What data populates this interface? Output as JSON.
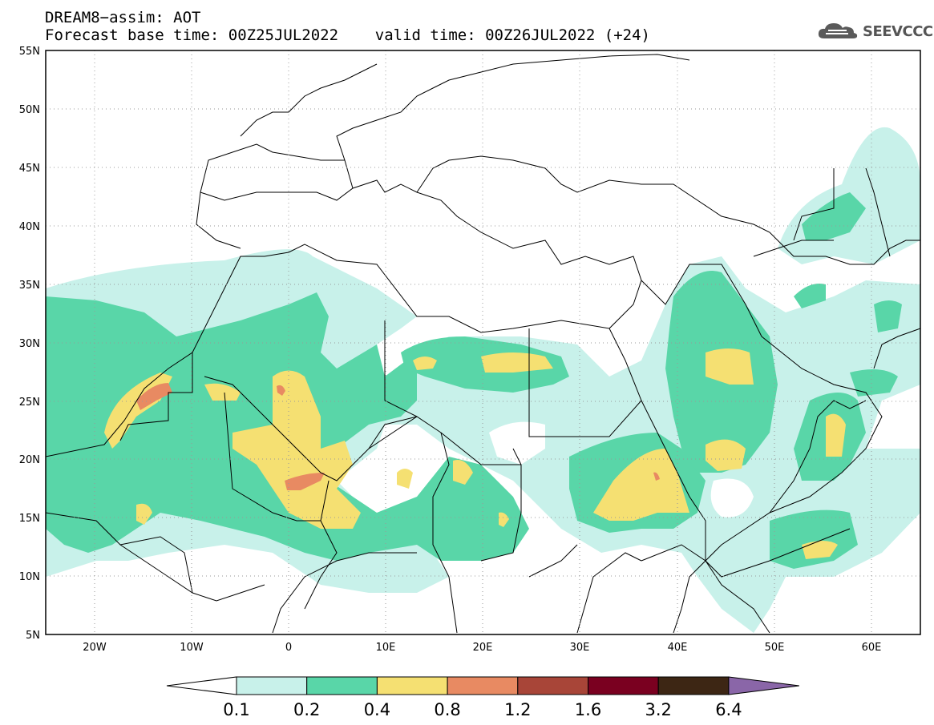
{
  "header": {
    "title_line1": "DREAM8−assim: AOT",
    "title_line2": "Forecast base time: 00Z25JUL2022    valid time: 00Z26JUL2022 (+24)"
  },
  "logo": {
    "icon": "cloud-icon",
    "text": "SEEVCCC"
  },
  "map": {
    "variable": "AOT",
    "lon_range": [
      -25,
      65
    ],
    "lat_range": [
      5,
      55
    ],
    "lat_labels": [
      "55N",
      "50N",
      "45N",
      "40N",
      "35N",
      "30N",
      "25N",
      "20N",
      "15N",
      "10N",
      "5N"
    ],
    "lon_labels": [
      "20W",
      "10W",
      "0",
      "10E",
      "20E",
      "30E",
      "40E",
      "50E",
      "60E"
    ],
    "lat_values": [
      55,
      50,
      45,
      40,
      35,
      30,
      25,
      20,
      15,
      10,
      5
    ],
    "lon_values": [
      -20,
      -10,
      0,
      10,
      20,
      30,
      40,
      50,
      60
    ],
    "gridlines": "dotted"
  },
  "colorbar": {
    "levels": [
      "0.1",
      "0.2",
      "0.4",
      "0.8",
      "1.2",
      "1.6",
      "3.2",
      "6.4"
    ],
    "colors": [
      "#ffffff",
      "#c8f1ea",
      "#59d6a8",
      "#f5e072",
      "#e88a62",
      "#a84538",
      "#7a0020",
      "#3d2614",
      "#8a66a8"
    ]
  }
}
